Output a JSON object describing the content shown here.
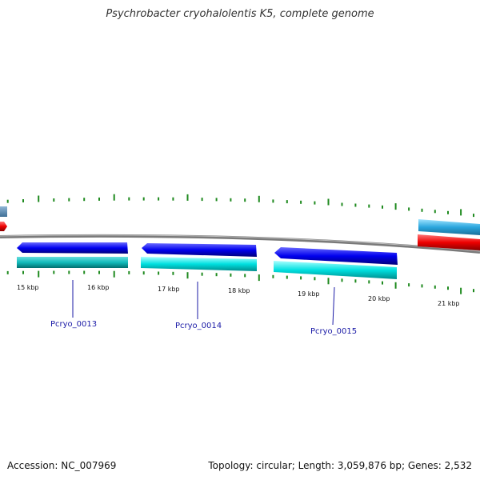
{
  "title": "Psychrobacter cryohalolentis K5, complete genome",
  "footer": {
    "accession": "Accession: NC_007969",
    "summary": "Topology: circular; Length: 3,059,876 bp; Genes: 2,532"
  },
  "axis": {
    "tick_labels": [
      "15 kbp",
      "16 kbp",
      "17 kbp",
      "18 kbp",
      "19 kbp",
      "20 kbp",
      "21 kbp"
    ]
  },
  "genes": [
    {
      "label": "Pcryo_0013"
    },
    {
      "label": "Pcryo_0014"
    },
    {
      "label": "Pcryo_0015"
    }
  ],
  "colors": {
    "cds_forward": "#0000ee",
    "cds_reverse_inner": "#00e5e5",
    "backbone": "#808080",
    "tick": "#1f8a1f",
    "label_line": "#1a1aa6",
    "edge_blue": "#33aadd",
    "edge_red": "#ee0000"
  }
}
